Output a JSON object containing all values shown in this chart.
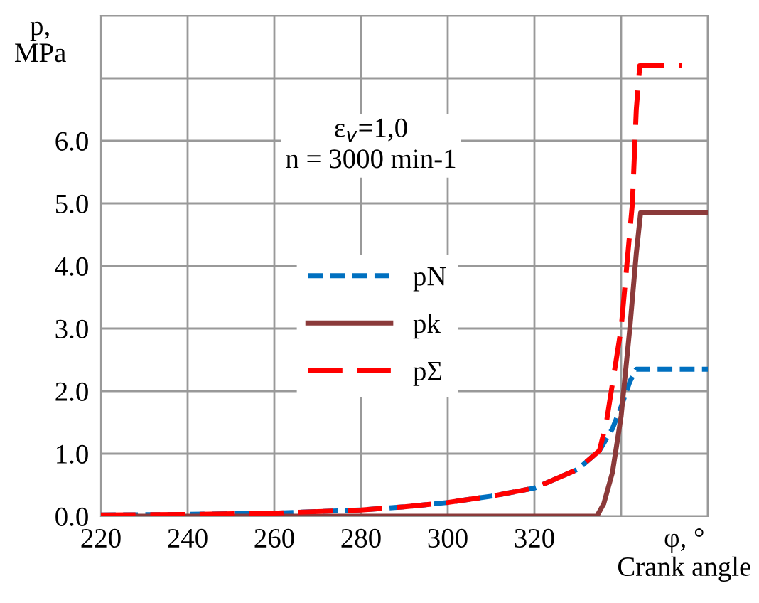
{
  "chart_data": {
    "type": "line",
    "xlabel": "φ, °\nCrank angle",
    "ylabel": "p,\nMPa",
    "annotations": [
      "ε$_{v}$=1,0\nn = 3000 min-1"
    ],
    "xlim": [
      220,
      360
    ],
    "ylim": [
      0,
      8
    ],
    "xticks": [
      220,
      240,
      260,
      280,
      300,
      320,
      {
        "value": 340,
        "label": null
      },
      {
        "value": 360,
        "label": null
      }
    ],
    "yticks": [
      {
        "value": 0,
        "label": "0.0"
      },
      {
        "value": 1,
        "label": "1.0"
      },
      {
        "value": 2,
        "label": "2.0"
      },
      {
        "value": 3,
        "label": "3.0"
      },
      {
        "value": 4,
        "label": "4.0"
      },
      {
        "value": 5,
        "label": "5.0"
      },
      {
        "value": 6,
        "label": "6.0"
      },
      {
        "value": 7,
        "label": null
      },
      {
        "value": 8,
        "label": null
      }
    ],
    "grid": true,
    "legend": "left",
    "series": [
      {
        "name": "pN",
        "color": "#0070c0",
        "line_style": "dashed",
        "x": [
          220,
          240,
          260,
          280,
          290,
          300,
          310,
          320,
          330,
          335,
          338,
          340,
          342,
          343.5,
          360
        ],
        "values": [
          0.02,
          0.03,
          0.05,
          0.1,
          0.15,
          0.22,
          0.32,
          0.45,
          0.75,
          1.05,
          1.4,
          1.75,
          2.15,
          2.35,
          2.35
        ]
      },
      {
        "name": "pk",
        "color": "#8b3a3a",
        "line_style": "solid",
        "x": [
          220,
          334.4,
          336,
          338,
          340,
          342,
          343.5,
          344.5,
          360
        ],
        "values": [
          0,
          0,
          0.2,
          0.7,
          1.6,
          3.0,
          4.2,
          4.85,
          4.85
        ]
      },
      {
        "name": "pΣ",
        "color": "#ff0000",
        "line_style": "longdash",
        "x": [
          220,
          240,
          260,
          280,
          290,
          300,
          310,
          320,
          330,
          335,
          336.6,
          340,
          342.6,
          343.5,
          344.3,
          354
        ],
        "values": [
          0.02,
          0.03,
          0.05,
          0.1,
          0.15,
          0.22,
          0.32,
          0.45,
          0.75,
          1.05,
          1.5,
          3.0,
          5.0,
          6.5,
          7.2,
          7.2
        ]
      }
    ]
  }
}
